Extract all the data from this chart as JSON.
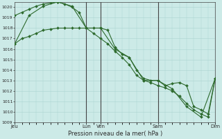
{
  "bg_color": "#cceae7",
  "grid_color": "#aad4d0",
  "line_color": "#2d6a2d",
  "xlabel": "Pression niveau de la mer( hPa )",
  "ylim": [
    1009,
    1020.5
  ],
  "yticks": [
    1009,
    1010,
    1011,
    1012,
    1013,
    1014,
    1015,
    1016,
    1017,
    1018,
    1019,
    1020
  ],
  "xtick_labels": [
    "Jeu",
    "Lun",
    "Ven",
    "Sam",
    "Dim"
  ],
  "xtick_positions": [
    0,
    60,
    72,
    120,
    168
  ],
  "xlim": [
    0,
    168
  ],
  "vlines": [
    60,
    72,
    120,
    168
  ],
  "series1": {
    "x": [
      0,
      6,
      12,
      18,
      24,
      30,
      36,
      42,
      48,
      54,
      60,
      66,
      72,
      78,
      84,
      90,
      96,
      102,
      108,
      114,
      120,
      126,
      132,
      138,
      144,
      150,
      156,
      162,
      168
    ],
    "y": [
      1019.2,
      1019.5,
      1019.8,
      1020.1,
      1020.3,
      1020.4,
      1020.5,
      1020.3,
      1020.0,
      1019.5,
      1018.0,
      1018.0,
      1018.0,
      1017.8,
      1016.2,
      1015.5,
      1015.2,
      1014.0,
      1013.2,
      1013.0,
      1013.0,
      1012.5,
      1012.7,
      1012.8,
      1012.5,
      1010.5,
      1010.2,
      1009.8,
      1013.2
    ]
  },
  "series2": {
    "x": [
      0,
      6,
      12,
      18,
      24,
      30,
      36,
      42,
      48,
      54,
      60,
      66,
      72,
      78,
      84,
      90,
      96,
      102,
      108,
      114,
      120,
      126,
      132,
      138,
      144,
      150,
      156,
      162,
      168
    ],
    "y": [
      1016.5,
      1017.0,
      1017.2,
      1017.5,
      1017.8,
      1017.9,
      1018.0,
      1018.0,
      1018.0,
      1018.0,
      1018.0,
      1017.5,
      1017.0,
      1016.5,
      1015.8,
      1015.2,
      1014.5,
      1013.5,
      1013.0,
      1012.8,
      1012.5,
      1012.3,
      1012.0,
      1011.5,
      1010.8,
      1010.2,
      1009.8,
      1009.5,
      1013.2
    ]
  },
  "series3": {
    "x": [
      0,
      12,
      24,
      36,
      48,
      60,
      72,
      84,
      96,
      108,
      120,
      132,
      144,
      156,
      168
    ],
    "y": [
      1016.5,
      1019.2,
      1020.1,
      1020.5,
      1020.1,
      1018.0,
      1018.0,
      1016.0,
      1015.2,
      1013.0,
      1013.0,
      1012.2,
      1010.5,
      1009.5,
      1013.2
    ]
  }
}
